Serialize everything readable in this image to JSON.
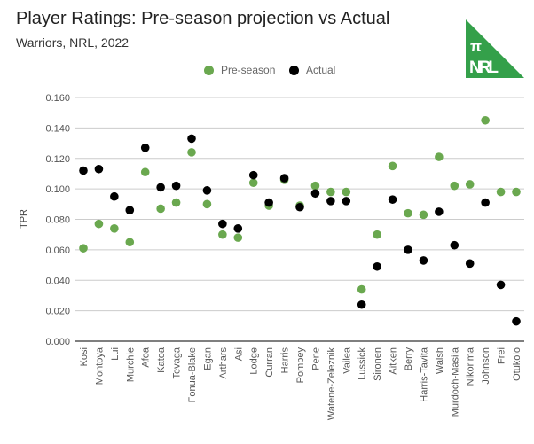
{
  "chart_data": {
    "type": "scatter",
    "title": "Player Ratings: Pre-season projection vs Actual",
    "subtitle": "Warriors, NRL, 2022",
    "xlabel": "",
    "ylabel": "TPR",
    "ylim": [
      0,
      0.16
    ],
    "yticks": [
      "0.000",
      "0.020",
      "0.040",
      "0.060",
      "0.080",
      "0.100",
      "0.120",
      "0.140",
      "0.160"
    ],
    "ytick_values": [
      0,
      0.02,
      0.04,
      0.06,
      0.08,
      0.1,
      0.12,
      0.14,
      0.16
    ],
    "grid": true,
    "legend_position": "top-center",
    "categories": [
      "Kosi",
      "Montoya",
      "Lui",
      "Murchie",
      "Afoa",
      "Katoa",
      "Tevaga",
      "Fonua-Blake",
      "Egan",
      "Arthars",
      "Asi",
      "Lodge",
      "Curran",
      "Harris",
      "Pompey",
      "Pene",
      "Watene-Zeleznik",
      "Vailea",
      "Lussick",
      "Sironen",
      "Aitken",
      "Berry",
      "Harris-Tavita",
      "Walsh",
      "Murdoch-Masila",
      "Nikorima",
      "Johnson",
      "Frei",
      "Otukolo"
    ],
    "series": [
      {
        "name": "Pre-season",
        "color": "#6aa84f",
        "values": [
          0.061,
          0.077,
          0.074,
          0.065,
          0.111,
          0.087,
          0.091,
          0.124,
          0.09,
          0.07,
          0.068,
          0.104,
          0.089,
          0.106,
          0.089,
          0.102,
          0.098,
          0.098,
          0.034,
          0.07,
          0.115,
          0.084,
          0.083,
          0.121,
          0.102,
          0.103,
          0.145,
          0.098,
          0.098
        ]
      },
      {
        "name": "Actual",
        "color": "#000000",
        "values": [
          0.112,
          0.113,
          0.095,
          0.086,
          0.127,
          0.101,
          0.102,
          0.133,
          0.099,
          0.077,
          0.074,
          0.109,
          0.091,
          0.107,
          0.088,
          0.097,
          0.092,
          0.092,
          0.024,
          0.049,
          0.093,
          0.06,
          0.053,
          0.085,
          0.063,
          0.051,
          0.091,
          0.037,
          0.013
        ]
      }
    ]
  },
  "logo": {
    "symbol": "π",
    "text": "NRL",
    "color": "#34a04a"
  }
}
